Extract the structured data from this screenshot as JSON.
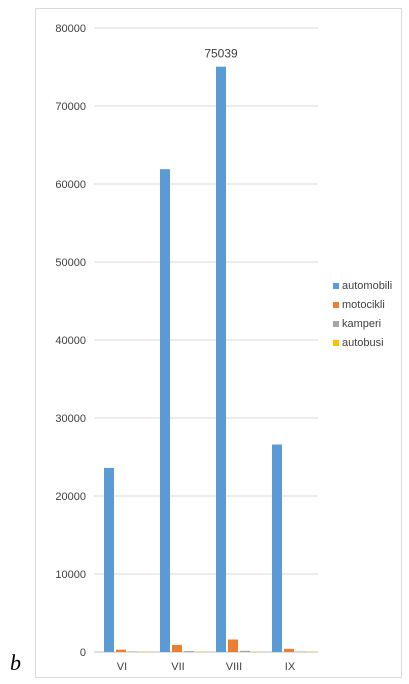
{
  "figure_letter": "b",
  "chart_data": {
    "type": "bar",
    "categories": [
      "VI",
      "VII",
      "VIII",
      "IX"
    ],
    "series": [
      {
        "name": "automobili",
        "values": [
          23600,
          61900,
          75039,
          26600
        ],
        "color": "#5b9bd5"
      },
      {
        "name": "motocikli",
        "values": [
          300,
          900,
          1600,
          400
        ],
        "color": "#ed7d31"
      },
      {
        "name": "kamperi",
        "values": [
          60,
          120,
          150,
          50
        ],
        "color": "#a5a5a5"
      },
      {
        "name": "autobusi",
        "values": [
          20,
          30,
          40,
          20
        ],
        "color": "#ffc000"
      }
    ],
    "ylim": [
      0,
      80000
    ],
    "yticks": [
      0,
      10000,
      20000,
      30000,
      40000,
      50000,
      60000,
      70000,
      80000
    ],
    "data_labels": [
      {
        "series": "automobili",
        "category": "VIII",
        "text": "75039"
      }
    ],
    "grid": true,
    "legend": "right",
    "title": "",
    "xlabel": "",
    "ylabel": ""
  }
}
